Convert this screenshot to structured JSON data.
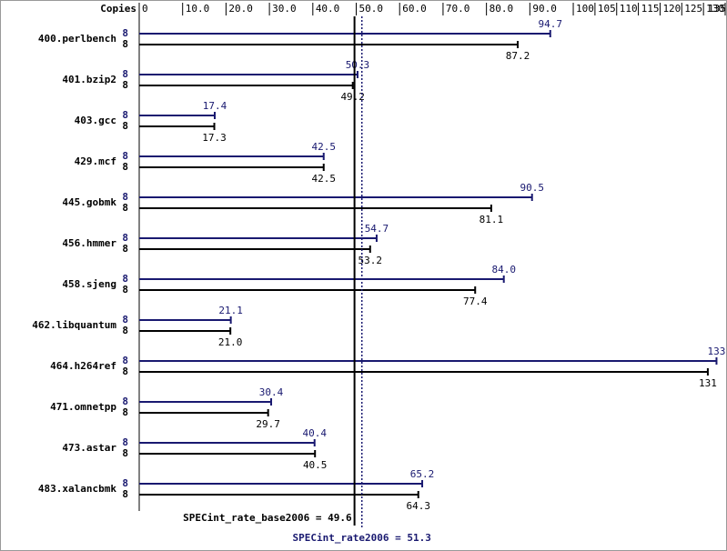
{
  "chart_data": {
    "type": "bar",
    "axis_label": "Copies",
    "categories": [
      "400.perlbench",
      "401.bzip2",
      "403.gcc",
      "429.mcf",
      "445.gobmk",
      "456.hmmer",
      "458.sjeng",
      "462.libquantum",
      "464.h264ref",
      "471.omnetpp",
      "473.astar",
      "483.xalancbmk"
    ],
    "series": [
      {
        "color": "#191970",
        "copies": [
          8,
          8,
          8,
          8,
          8,
          8,
          8,
          8,
          8,
          8,
          8,
          8
        ],
        "values": [
          94.7,
          50.3,
          17.4,
          42.5,
          90.5,
          54.7,
          84.0,
          21.1,
          133,
          30.4,
          40.4,
          65.2
        ],
        "value_labels": [
          "94.7",
          "50.3",
          "17.4",
          "42.5",
          "90.5",
          "54.7",
          "84.0",
          "21.1",
          "133",
          "30.4",
          "40.4",
          "65.2"
        ]
      },
      {
        "color": "#000000",
        "copies": [
          8,
          8,
          8,
          8,
          8,
          8,
          8,
          8,
          8,
          8,
          8,
          8
        ],
        "values": [
          87.2,
          49.2,
          17.3,
          42.5,
          81.1,
          53.2,
          77.4,
          21.0,
          131,
          29.7,
          40.5,
          64.3
        ],
        "value_labels": [
          "87.2",
          "49.2",
          "17.3",
          "42.5",
          "81.1",
          "53.2",
          "77.4",
          "21.0",
          "131",
          "29.7",
          "40.5",
          "64.3"
        ]
      }
    ],
    "reference_lines": [
      {
        "label": "SPECint_rate_base2006 = 49.6",
        "value": 49.6,
        "color": "#000000",
        "style": "solid"
      },
      {
        "label": "SPECint_rate2006 = 51.3",
        "value": 51.3,
        "color": "#191970",
        "style": "dotted"
      }
    ],
    "xlim": [
      0,
      135
    ],
    "xticks": [
      0,
      {
        "value": 10,
        "label": "10.0"
      },
      {
        "value": 20,
        "label": "20.0"
      },
      {
        "value": 30,
        "label": "30.0"
      },
      {
        "value": 40,
        "label": "40.0"
      },
      {
        "value": 50,
        "label": "50.0"
      },
      {
        "value": 60,
        "label": "60.0"
      },
      {
        "value": 70,
        "label": "70.0"
      },
      {
        "value": 80,
        "label": "80.0"
      },
      {
        "value": 90,
        "label": "90.0"
      },
      100,
      105,
      110,
      115,
      120,
      125,
      130,
      135
    ]
  }
}
